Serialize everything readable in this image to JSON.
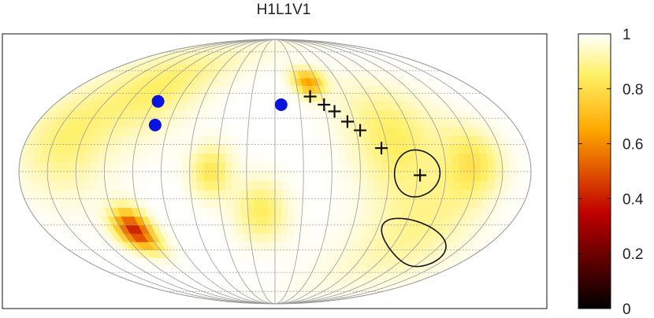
{
  "chart_data": {
    "type": "heatmap",
    "title": "H1L1V1",
    "projection": "mollweide",
    "colormap": "hot",
    "colorbar": {
      "min": 0,
      "max": 1,
      "ticks": [
        0,
        0.2,
        0.4,
        0.6,
        0.8,
        1
      ],
      "tick_labels": [
        "0",
        "0.2",
        "0.4",
        "0.6",
        "0.8",
        "1"
      ]
    },
    "grid": true,
    "grid_lines": {
      "meridian_step_deg": 20,
      "parallel_step_deg": 15
    },
    "heat_blobs": [
      {
        "lon": -110,
        "lat": -33,
        "sigma": 8,
        "value": 0.4
      },
      {
        "lon": 32,
        "lat": 52,
        "sigma": 6,
        "value": 0.65
      },
      {
        "lon": -45,
        "lat": 0,
        "sigma": 10,
        "value": 0.82
      },
      {
        "lon": -10,
        "lat": -22,
        "sigma": 12,
        "value": 0.84
      },
      {
        "lon": 85,
        "lat": 20,
        "sigma": 20,
        "value": 0.85
      },
      {
        "lon": 140,
        "lat": 5,
        "sigma": 14,
        "value": 0.83
      },
      {
        "lon": -150,
        "lat": 20,
        "sigma": 22,
        "value": 0.86
      },
      {
        "lon": -100,
        "lat": 50,
        "sigma": 20,
        "value": 0.87
      },
      {
        "lon": 110,
        "lat": -30,
        "sigma": 25,
        "value": 0.89
      }
    ],
    "blue_points": [
      {
        "lon": -97,
        "lat": 40
      },
      {
        "lon": -90,
        "lat": 26
      },
      {
        "lon": 5,
        "lat": 38
      }
    ],
    "cross_markers": [
      {
        "lon": 30,
        "lat": 43
      },
      {
        "lon": 40,
        "lat": 38
      },
      {
        "lon": 47,
        "lat": 34
      },
      {
        "lon": 55,
        "lat": 28
      },
      {
        "lon": 63,
        "lat": 23
      },
      {
        "lon": 76,
        "lat": 13
      },
      {
        "lon": 102,
        "lat": -2
      }
    ],
    "contours": [
      {
        "lon": 100,
        "lat": -1,
        "r_lon": 16,
        "r_lat": 13,
        "angle": 0
      },
      {
        "lon": 118,
        "lat": -41,
        "r_lon": 37,
        "r_lat": 10,
        "angle": -18
      }
    ],
    "colors": {
      "marker_blue": "#0a14e0",
      "line": "#111111",
      "grid": "#9a9a9a"
    }
  }
}
